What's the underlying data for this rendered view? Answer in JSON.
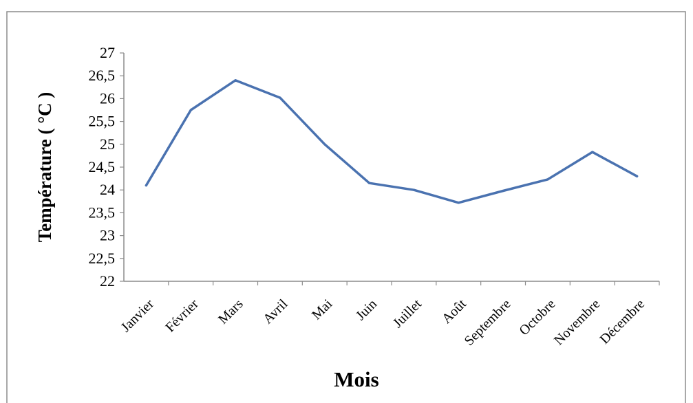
{
  "chart_data": {
    "type": "line",
    "title": "",
    "xlabel": "Mois",
    "ylabel": "Température ( °C )",
    "ylim": [
      22,
      27
    ],
    "yticks": [
      "22",
      "22,5",
      "23",
      "23,5",
      "24",
      "24,5",
      "25",
      "25,5",
      "26",
      "26,5",
      "27"
    ],
    "categories": [
      "Janvier",
      "Février",
      "Mars",
      "Avril",
      "Mai",
      "Juin",
      "Juillet",
      "Août",
      "Septembre",
      "Octobre",
      "Novembre",
      "Décembre"
    ],
    "series": [
      {
        "values": [
          24.1,
          25.75,
          26.4,
          26.02,
          25.0,
          24.15,
          24.0,
          23.72,
          23.98,
          24.23,
          24.83,
          24.3
        ]
      }
    ],
    "grid": false,
    "legend": "none",
    "colors": {
      "line": "#4a72b0",
      "axis": "#8c8c8c",
      "border": "#8c8c8c"
    }
  }
}
